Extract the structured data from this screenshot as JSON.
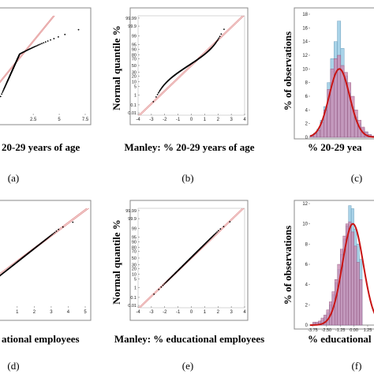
{
  "figure": {
    "labels": [
      "(a)",
      "(b)",
      "(c)",
      "(d)",
      "(e)",
      "(f)"
    ],
    "colors": {
      "points": "#000000",
      "ref_line": "#e08888",
      "hist_blue": "#a9d3e8",
      "hist_pink": "#c98bb2",
      "fit_curve": "#c81414",
      "axis": "#666666"
    }
  },
  "chart_data": [
    {
      "id": "a",
      "type": "scatter",
      "xlabel": "20-29 years of age",
      "x_ticks": [
        "2.5",
        "5",
        "7.5"
      ],
      "xlim": [
        -1.0,
        7.5
      ],
      "shape": "concave-knee",
      "note_visible_only": "normal probability plot (left portion cropped)"
    },
    {
      "id": "b",
      "type": "scatter",
      "xlabel": "Manley: % 20-29 years of age",
      "ylabel": "Normal quantile %",
      "x_ticks": [
        "-4",
        "-3",
        "-2",
        "-1",
        "0",
        "1",
        "2",
        "3",
        "4"
      ],
      "y_ticks": [
        "0.01",
        "0.1",
        "1",
        "5",
        "10",
        "20",
        "30",
        "50",
        "70",
        "80",
        "90",
        "95",
        "99",
        "99.9",
        "99.99"
      ],
      "xlim": [
        -4,
        4
      ],
      "shape": "s-curve"
    },
    {
      "id": "c",
      "type": "bar",
      "xlabel": "% 20-29 yea",
      "ylabel": "% of observations",
      "y_ticks": [
        "0",
        "2",
        "4",
        "6",
        "8",
        "10",
        "12",
        "14",
        "16",
        "18"
      ],
      "ylim": [
        0,
        18
      ],
      "blue_values": [
        0.3,
        0.6,
        1.2,
        2.5,
        4.5,
        8.0,
        11.5,
        14.0,
        17.0,
        13.0,
        9.0,
        6.5,
        4.5,
        3.0,
        2.0,
        1.3,
        0.8,
        0.4,
        0.2
      ],
      "pink_values": [
        0.2,
        0.5,
        1.0,
        2.2,
        4.0,
        7.0,
        10.0,
        11.5,
        12.0,
        10.5,
        9.5,
        8.0,
        6.0,
        4.0,
        2.5,
        1.5,
        0.8,
        0.4,
        0.2
      ],
      "fit_peak": 10
    },
    {
      "id": "d",
      "type": "scatter",
      "xlabel": "ational employees",
      "x_ticks": [
        "1",
        "2",
        "3",
        "4",
        "5"
      ],
      "xlim": [
        -0.2,
        5.0
      ],
      "shape": "linear-upper-tail"
    },
    {
      "id": "e",
      "type": "scatter",
      "xlabel": "Manley: % educational employees",
      "ylabel": "Normal quantile %",
      "x_ticks": [
        "-4",
        "-3",
        "-2",
        "-1",
        "0",
        "1",
        "2",
        "3",
        "4"
      ],
      "y_ticks": [
        "0.01",
        "0.1",
        "1",
        "5",
        "10",
        "20",
        "30",
        "50",
        "70",
        "80",
        "90",
        "95",
        "99",
        "99.9",
        "99.99"
      ],
      "xlim": [
        -4,
        4
      ],
      "shape": "linear"
    },
    {
      "id": "f",
      "type": "bar",
      "xlabel": "% educational",
      "ylabel": "% of observations",
      "x_ticks": [
        "-3.75",
        "-2.50",
        "-1.25",
        "0.00",
        "1.25"
      ],
      "y_ticks": [
        "0",
        "2",
        "4",
        "6",
        "8",
        "10",
        "12"
      ],
      "ylim": [
        0,
        12
      ],
      "xlim": [
        -4.0,
        1.9
      ],
      "bin_start": -3.75,
      "bin_width": 0.25,
      "blue_values": [
        0.2,
        0.2,
        0.3,
        0.5,
        0.8,
        1.2,
        2.0,
        3.0,
        4.2,
        5.5,
        7.0,
        8.5,
        9.8,
        11.8,
        11.5,
        9.5,
        8.0,
        6.5
      ],
      "pink_values": [
        0.3,
        0.3,
        0.4,
        0.7,
        1.0,
        1.5,
        2.3,
        3.3,
        4.5,
        6.0,
        7.5,
        8.8,
        10.0,
        10.2,
        9.2,
        7.8,
        6.2,
        4.5
      ],
      "fit_peak": 10
    }
  ]
}
